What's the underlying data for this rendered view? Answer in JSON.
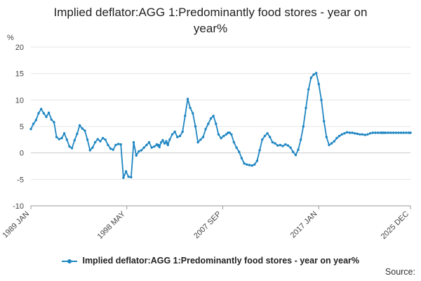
{
  "chart_data": {
    "type": "line",
    "title_line1": "Implied deflator:AGG 1:Predominantly food stores - year on",
    "title_line2": "year%",
    "ylabel": "%",
    "ylim": [
      -10,
      20
    ],
    "yticks": [
      -10,
      -5,
      0,
      5,
      10,
      15,
      20
    ],
    "xlim": [
      1989.0,
      2025.917
    ],
    "xtick_labels": [
      "1989 JAN",
      "1998 MAY",
      "2007 SEP",
      "2017 JAN",
      "2025 DEC"
    ],
    "xtick_values": [
      1989.0,
      1998.333,
      2007.667,
      2017.0,
      2025.917
    ],
    "grid": true,
    "legend_position": "bottom",
    "series": [
      {
        "name": "Implied deflator:AGG 1:Predominantly food stores - year on year%",
        "color": "#1f86c2",
        "x": [
          1989.0,
          1989.25,
          1989.5,
          1989.75,
          1990.0,
          1990.25,
          1990.5,
          1990.75,
          1991.0,
          1991.25,
          1991.5,
          1991.75,
          1992.0,
          1992.25,
          1992.5,
          1992.75,
          1993.0,
          1993.25,
          1993.5,
          1993.75,
          1994.0,
          1994.25,
          1994.5,
          1994.75,
          1995.0,
          1995.25,
          1995.5,
          1995.75,
          1996.0,
          1996.25,
          1996.5,
          1996.75,
          1997.0,
          1997.25,
          1997.5,
          1997.75,
          1998.0,
          1998.25,
          1998.5,
          1998.75,
          1999.0,
          1999.25,
          1999.5,
          1999.75,
          2000.0,
          2000.25,
          2000.5,
          2000.75,
          2001.0,
          2001.25,
          2001.33,
          2001.42,
          2001.5,
          2001.67,
          2001.83,
          2002.0,
          2002.17,
          2002.25,
          2002.33,
          2002.5,
          2002.75,
          2003.0,
          2003.25,
          2003.5,
          2003.75,
          2004.0,
          2004.25,
          2004.5,
          2004.75,
          2005.0,
          2005.25,
          2005.5,
          2005.75,
          2006.0,
          2006.25,
          2006.5,
          2006.75,
          2007.0,
          2007.25,
          2007.5,
          2007.75,
          2008.0,
          2008.17,
          2008.33,
          2008.5,
          2008.75,
          2009.0,
          2009.25,
          2009.5,
          2009.75,
          2010.0,
          2010.25,
          2010.5,
          2010.75,
          2011.0,
          2011.25,
          2011.5,
          2011.75,
          2012.0,
          2012.25,
          2012.5,
          2012.75,
          2013.0,
          2013.25,
          2013.5,
          2013.75,
          2014.0,
          2014.25,
          2014.5,
          2014.75,
          2015.0,
          2015.25,
          2015.5,
          2015.75,
          2016.0,
          2016.25,
          2016.5,
          2016.75,
          2017.0,
          2017.25,
          2017.5,
          2017.75,
          2018.0,
          2018.25,
          2018.5,
          2018.75,
          2019.0,
          2019.25,
          2019.5,
          2019.75,
          2020.0,
          2020.25,
          2020.5,
          2020.75,
          2021.0,
          2021.25,
          2021.5,
          2021.75,
          2022.0,
          2022.25,
          2022.5,
          2022.75,
          2023.0,
          2023.17,
          2023.33,
          2023.5,
          2023.75,
          2024.0,
          2024.25,
          2024.5,
          2024.75,
          2025.0,
          2025.25,
          2025.5,
          2025.75,
          2025.917
        ],
        "values": [
          4.5,
          5.5,
          6.2,
          7.5,
          8.3,
          7.5,
          6.8,
          7.6,
          6.3,
          5.8,
          3.0,
          2.6,
          2.8,
          3.7,
          2.5,
          1.2,
          0.9,
          2.4,
          3.6,
          5.2,
          4.6,
          4.2,
          2.5,
          0.5,
          1.0,
          2.0,
          2.6,
          2.2,
          2.8,
          2.5,
          1.5,
          0.8,
          0.6,
          1.5,
          1.7,
          1.6,
          -4.7,
          -3.5,
          -4.5,
          -4.6,
          2.0,
          -0.5,
          0.3,
          0.5,
          1.0,
          1.5,
          2.0,
          1.0,
          1.2,
          1.6,
          1.4,
          1.5,
          1.1,
          2.0,
          2.4,
          1.8,
          2.2,
          1.8,
          1.5,
          2.5,
          3.5,
          4.0,
          3.0,
          3.2,
          4.0,
          7.0,
          10.2,
          8.5,
          7.5,
          5.0,
          2.0,
          2.5,
          3.0,
          4.5,
          5.5,
          6.5,
          7.0,
          5.5,
          3.5,
          2.8,
          3.2,
          3.5,
          3.8,
          3.8,
          3.5,
          2.0,
          1.0,
          0.2,
          -1.0,
          -2.0,
          -2.2,
          -2.3,
          -2.4,
          -2.2,
          -1.5,
          0.5,
          2.5,
          3.2,
          3.7,
          3.0,
          2.0,
          1.8,
          1.4,
          1.5,
          1.3,
          1.6,
          1.4,
          1.0,
          0.2,
          -0.4,
          0.6,
          2.5,
          5.0,
          8.5,
          12.0,
          14.2,
          14.8,
          15.1,
          13.0,
          10.0,
          6.0,
          3.0,
          1.5,
          1.8,
          2.2,
          2.8,
          3.2,
          3.5,
          3.7,
          3.9,
          3.8,
          3.8,
          3.7,
          3.6,
          3.5,
          3.5,
          3.4,
          3.5,
          3.7,
          3.8,
          3.8,
          3.8,
          3.8,
          3.8,
          3.8,
          3.8,
          3.8,
          3.8,
          3.8,
          3.8,
          3.8,
          3.8,
          3.8,
          3.8,
          3.8,
          3.8
        ]
      }
    ]
  },
  "source_label": "Source:"
}
